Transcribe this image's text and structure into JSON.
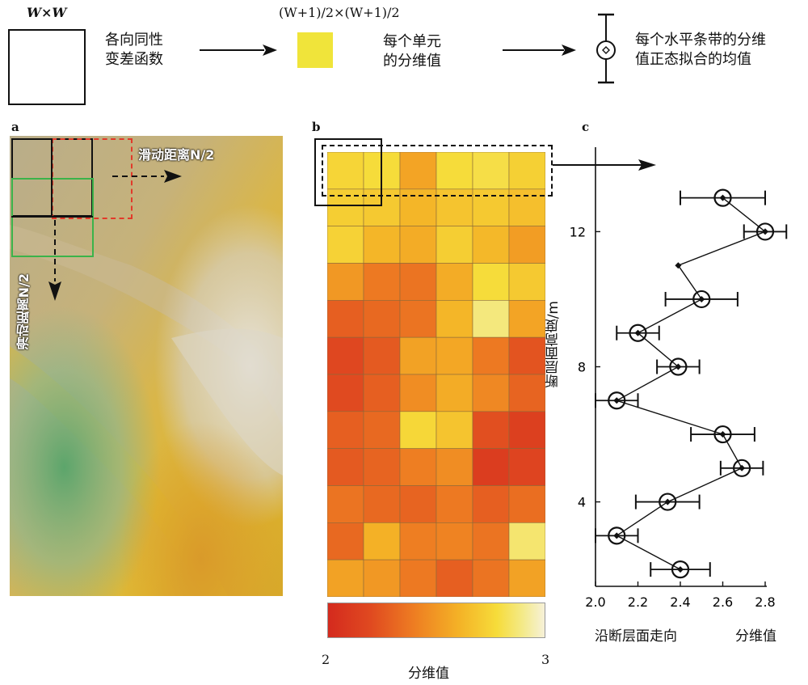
{
  "legend": {
    "window_label": "W×W",
    "window_desc_line1": "各向同性",
    "window_desc_line2": "变差函数",
    "cell_label": "(W+1)/2×(W+1)/2",
    "cell_desc_line1": "每个单元",
    "cell_desc_line2": "的分维值",
    "marker_desc_line1": "每个水平条带的分维",
    "marker_desc_line2": "值正态拟合的均值"
  },
  "panels": {
    "a": {
      "letter": "a",
      "slide_h_label": "滑动距离N/2",
      "slide_v_label": "滑动距离N/2"
    },
    "b": {
      "letter": "b",
      "colorbar_min": "2",
      "colorbar_max": "3",
      "colorbar_label": "分维值",
      "grid_rows": [
        [
          2.75,
          2.78,
          2.55,
          2.78,
          2.8,
          2.73
        ],
        [
          2.72,
          2.7,
          2.62,
          2.68,
          2.7,
          2.66
        ],
        [
          2.74,
          2.62,
          2.58,
          2.72,
          2.63,
          2.52
        ],
        [
          2.5,
          2.38,
          2.36,
          2.58,
          2.78,
          2.7
        ],
        [
          2.28,
          2.32,
          2.36,
          2.62,
          2.88,
          2.55
        ],
        [
          2.18,
          2.26,
          2.54,
          2.56,
          2.38,
          2.24
        ],
        [
          2.2,
          2.28,
          2.46,
          2.58,
          2.44,
          2.3
        ],
        [
          2.28,
          2.32,
          2.76,
          2.68,
          2.22,
          2.14
        ],
        [
          2.26,
          2.3,
          2.4,
          2.46,
          2.12,
          2.16
        ],
        [
          2.36,
          2.32,
          2.3,
          2.38,
          2.28,
          2.34
        ],
        [
          2.32,
          2.6,
          2.4,
          2.42,
          2.36,
          2.86
        ],
        [
          2.54,
          2.5,
          2.38,
          2.28,
          2.36,
          2.54
        ]
      ]
    },
    "c": {
      "letter": "c",
      "ylabel": "断层面高度/m",
      "xlabel_left": "沿断层面走向",
      "xlabel_right": "分维值"
    }
  },
  "chart_data": {
    "type": "scatter",
    "xlim": [
      2.0,
      2.8
    ],
    "ylim": [
      1.5,
      14.5
    ],
    "x_ticks": [
      "2.0",
      "2.2",
      "2.4",
      "2.6",
      "2.8"
    ],
    "y_ticks": [
      "4",
      "8",
      "12"
    ],
    "points": [
      {
        "x": 2.6,
        "y": 13.0,
        "err": 0.2,
        "circle": true
      },
      {
        "x": 2.8,
        "y": 12.0,
        "err": 0.1,
        "circle": true
      },
      {
        "x": 2.39,
        "y": 11.0,
        "err": 0,
        "circle": false
      },
      {
        "x": 2.5,
        "y": 10.0,
        "err": 0.17,
        "circle": true
      },
      {
        "x": 2.2,
        "y": 9.0,
        "err": 0.1,
        "circle": true
      },
      {
        "x": 2.39,
        "y": 8.0,
        "err": 0.1,
        "circle": true
      },
      {
        "x": 2.1,
        "y": 7.0,
        "err": 0.1,
        "circle": true
      },
      {
        "x": 2.6,
        "y": 6.0,
        "err": 0.15,
        "circle": true
      },
      {
        "x": 2.69,
        "y": 5.0,
        "err": 0.1,
        "circle": true
      },
      {
        "x": 2.34,
        "y": 4.0,
        "err": 0.15,
        "circle": true
      },
      {
        "x": 2.1,
        "y": 3.0,
        "err": 0.1,
        "circle": true
      },
      {
        "x": 2.4,
        "y": 2.0,
        "err": 0.14,
        "circle": true
      }
    ]
  }
}
